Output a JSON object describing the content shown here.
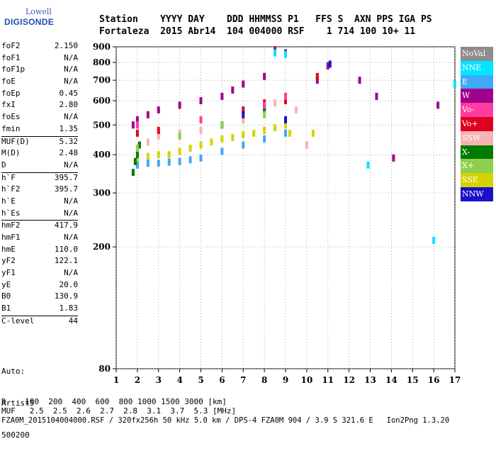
{
  "logo": {
    "line1": "Lowell",
    "line2": "DIGISONDE"
  },
  "header": {
    "labels": "Station    YYYY DAY    DDD HHMMSS P1   FFS S  AXN PPS IGA PS",
    "values": "Fortaleza  2015 Abr14  104 004000 RSF    1 714 100 10+ 11"
  },
  "params": [
    {
      "name": "foF2",
      "value": "2.150"
    },
    {
      "name": "foF1",
      "value": "N/A"
    },
    {
      "name": "foF1p",
      "value": "N/A"
    },
    {
      "name": "foE",
      "value": "N/A"
    },
    {
      "name": "foEp",
      "value": "0.45"
    },
    {
      "name": "fxI",
      "value": "2.80"
    },
    {
      "name": "foEs",
      "value": "N/A"
    },
    {
      "name": "fmin",
      "value": "1.35"
    },
    {
      "name": "MUF(D)",
      "value": "5.32"
    },
    {
      "name": "M(D)",
      "value": "2.48"
    },
    {
      "name": "D",
      "value": "N/A"
    },
    {
      "name": "h`F",
      "value": "395.7"
    },
    {
      "name": "h`F2",
      "value": "395.7"
    },
    {
      "name": "h`E",
      "value": "N/A"
    },
    {
      "name": "h`Es",
      "value": "N/A"
    },
    {
      "name": "hmF2",
      "value": "417.9"
    },
    {
      "name": "hmF1",
      "value": "N/A"
    },
    {
      "name": "hmE",
      "value": "110.0"
    },
    {
      "name": "yF2",
      "value": "122.1"
    },
    {
      "name": "yF1",
      "value": "N/A"
    },
    {
      "name": "yE",
      "value": "20.0"
    },
    {
      "name": "B0",
      "value": "130.9"
    },
    {
      "name": "B1",
      "value": "1.83"
    },
    {
      "name": "C-level",
      "value": "44"
    }
  ],
  "auto": {
    "l1": "Auto:",
    "l2": "Artist5",
    "l3": "500200"
  },
  "legend": [
    {
      "label": "NoVal",
      "color": "#8c8c8c"
    },
    {
      "label": "NNE",
      "color": "#00e5ff"
    },
    {
      "label": "E",
      "color": "#3fa9f5"
    },
    {
      "label": "W",
      "color": "#a0008c"
    },
    {
      "label": "Vo-",
      "color": "#ff3ca0"
    },
    {
      "label": "Vo+",
      "color": "#e0001e"
    },
    {
      "label": "SSW",
      "color": "#f6b3b3"
    },
    {
      "label": "X-",
      "color": "#007a00"
    },
    {
      "label": "X+",
      "color": "#8fcf4f"
    },
    {
      "label": "SSE",
      "color": "#d4d400"
    },
    {
      "label": "NNW",
      "color": "#1a10c8"
    }
  ],
  "footer": {
    "d_row": "D    100  200  400  600  800 1000 1500 3000 [km]",
    "muf_row": "MUF   2.5  2.5  2.6  2.7  2.8  3.1  3.7  5.3 [MHz]",
    "file_row": "FZA0M_2015104004000.RSF / 320fx256h 50 kHz 5.0 km / DPS-4 FZA0M 904 / 3.9 S 321.6 E   Ion2Png 1.3.20"
  },
  "chart_data": {
    "type": "scatter",
    "xlabel": "",
    "ylabel": "",
    "xlim": [
      1,
      17
    ],
    "ylim": [
      80,
      900
    ],
    "xticks": [
      1,
      2,
      3,
      4,
      5,
      6,
      7,
      8,
      9,
      10,
      11,
      12,
      13,
      14,
      15,
      16,
      17
    ],
    "yticks": [
      80,
      200,
      300,
      400,
      500,
      600,
      700,
      800,
      900
    ],
    "y_scale": "log",
    "grid": true,
    "series": [
      {
        "name": "SSE",
        "color": "#d4d400",
        "points": [
          [
            2,
            380
          ],
          [
            2.5,
            395
          ],
          [
            3,
            400
          ],
          [
            3.5,
            400
          ],
          [
            4,
            410
          ],
          [
            4.5,
            420
          ],
          [
            5,
            430
          ],
          [
            5.5,
            440
          ],
          [
            6,
            450
          ],
          [
            6.5,
            455
          ],
          [
            7,
            465
          ],
          [
            7.5,
            470
          ],
          [
            8,
            480
          ],
          [
            8.5,
            490
          ],
          [
            9,
            500
          ],
          [
            9.2,
            470
          ],
          [
            10.3,
            470
          ]
        ]
      },
      {
        "name": "E",
        "color": "#3fa9f5",
        "points": [
          [
            2,
            370
          ],
          [
            2.5,
            375
          ],
          [
            3,
            375
          ],
          [
            3.5,
            378
          ],
          [
            4,
            380
          ],
          [
            4.5,
            385
          ],
          [
            5,
            390
          ],
          [
            6,
            410
          ],
          [
            7,
            430
          ],
          [
            8,
            450
          ],
          [
            9,
            470
          ]
        ]
      },
      {
        "name": "SSW",
        "color": "#f6b3b3",
        "points": [
          [
            2,
            420
          ],
          [
            2.5,
            440
          ],
          [
            3,
            460
          ],
          [
            4,
            470
          ],
          [
            5,
            480
          ],
          [
            6,
            500
          ],
          [
            7,
            520
          ],
          [
            8,
            560
          ],
          [
            8.5,
            590
          ],
          [
            9,
            610
          ],
          [
            9.5,
            560
          ],
          [
            10,
            430
          ]
        ]
      },
      {
        "name": "W",
        "color": "#a0008c",
        "points": [
          [
            1.8,
            500
          ],
          [
            2,
            520
          ],
          [
            2.5,
            540
          ],
          [
            3,
            560
          ],
          [
            4,
            580
          ],
          [
            5,
            600
          ],
          [
            6,
            620
          ],
          [
            6.5,
            650
          ],
          [
            7,
            680
          ],
          [
            8,
            720
          ],
          [
            8.5,
            880
          ],
          [
            9,
            860
          ],
          [
            10.5,
            700
          ],
          [
            11,
            780
          ],
          [
            12.5,
            700
          ],
          [
            13.3,
            620
          ],
          [
            14.1,
            390
          ],
          [
            16.2,
            580
          ]
        ]
      },
      {
        "name": "NNE",
        "color": "#00e5ff",
        "points": [
          [
            8.5,
            860
          ],
          [
            9,
            850
          ],
          [
            12.9,
            370
          ],
          [
            17,
            680
          ],
          [
            16,
            210
          ]
        ]
      },
      {
        "name": "Vo+",
        "color": "#e0001e",
        "points": [
          [
            2,
            470
          ],
          [
            3,
            480
          ],
          [
            7,
            560
          ],
          [
            8,
            590
          ],
          [
            9,
            600
          ],
          [
            10.5,
            720
          ]
        ]
      },
      {
        "name": "NNW",
        "color": "#1a10c8",
        "points": [
          [
            6,
            500
          ],
          [
            7,
            540
          ],
          [
            8,
            570
          ],
          [
            9,
            520
          ],
          [
            11.1,
            790
          ]
        ]
      },
      {
        "name": "X-",
        "color": "#007a00",
        "points": [
          [
            1.8,
            350
          ],
          [
            1.9,
            380
          ],
          [
            2,
            400
          ],
          [
            2.1,
            430
          ],
          [
            8,
            560
          ]
        ]
      },
      {
        "name": "X+",
        "color": "#8fcf4f",
        "points": [
          [
            2,
            420
          ],
          [
            4,
            460
          ],
          [
            6,
            500
          ],
          [
            8,
            540
          ]
        ]
      },
      {
        "name": "Vo-",
        "color": "#ff3ca0",
        "points": [
          [
            2,
            500
          ],
          [
            5,
            520
          ],
          [
            8,
            580
          ],
          [
            9,
            620
          ]
        ]
      }
    ]
  }
}
